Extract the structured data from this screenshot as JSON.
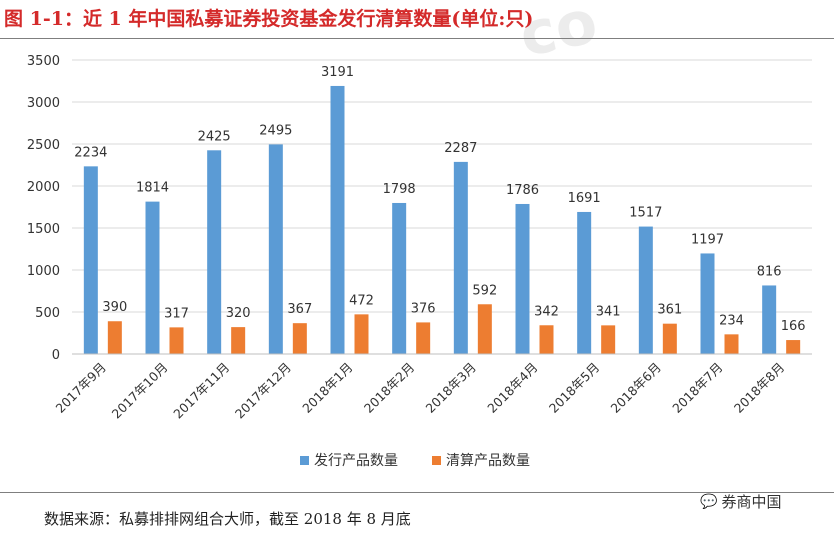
{
  "title": "图 1-1：近 1 年中国私募证券投资基金发行清算数量(单位:只)",
  "source": "数据来源：私募排排网组合大师，截至 2018 年 8 月底",
  "watermark": {
    "icon": "wechat-icon",
    "text": "券商中国"
  },
  "colors": {
    "issued": "#5b9bd5",
    "liquidated": "#ed7d31",
    "title": "#d42a2a"
  },
  "chart_data": {
    "type": "bar",
    "categories": [
      "2017年9月",
      "2017年10月",
      "2017年11月",
      "2017年12月",
      "2018年1月",
      "2018年2月",
      "2018年3月",
      "2018年4月",
      "2018年5月",
      "2018年6月",
      "2018年7月",
      "2018年8月"
    ],
    "series": [
      {
        "name": "发行产品数量",
        "values": [
          2234,
          1814,
          2425,
          2495,
          3191,
          1798,
          2287,
          1786,
          1691,
          1517,
          1197,
          816
        ]
      },
      {
        "name": "清算产品数量",
        "values": [
          390,
          317,
          320,
          367,
          472,
          376,
          592,
          342,
          341,
          361,
          234,
          166
        ]
      }
    ],
    "yticks": [
      0,
      500,
      1000,
      1500,
      2000,
      2500,
      3000,
      3500
    ],
    "ylim": [
      0,
      3500
    ],
    "grid": true,
    "legend": "bottom"
  }
}
